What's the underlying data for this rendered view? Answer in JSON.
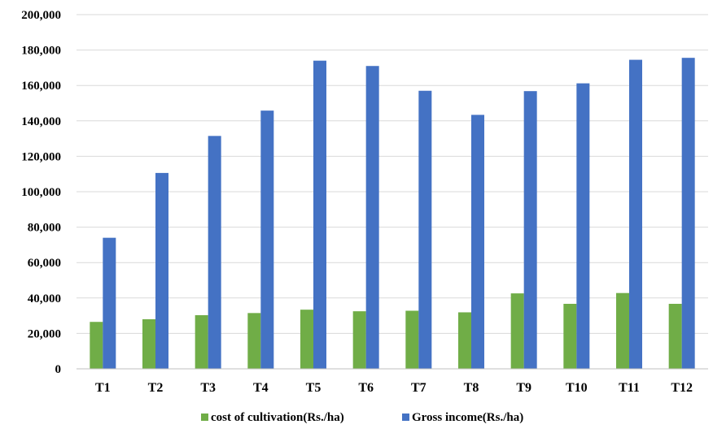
{
  "chart_data": {
    "type": "bar",
    "categories": [
      "T1",
      "T2",
      "T3",
      "T4",
      "T5",
      "T6",
      "T7",
      "T8",
      "T9",
      "T10",
      "T11",
      "T12"
    ],
    "series": [
      {
        "name": "cost of cultivation(Rs./ha)",
        "color": "#70AD47",
        "values": [
          26500,
          28000,
          30300,
          31500,
          33400,
          32500,
          32800,
          31900,
          42600,
          36700,
          42800,
          36700
        ]
      },
      {
        "name": "Gross income(Rs./ha)",
        "color": "#4472C4",
        "values": [
          74000,
          110600,
          131500,
          145800,
          174000,
          171000,
          157000,
          143400,
          156800,
          161200,
          174500,
          175600
        ]
      }
    ],
    "yticks": [
      "0",
      "20,000",
      "40,000",
      "60,000",
      "80,000",
      "100,000",
      "120,000",
      "140,000",
      "160,000",
      "180,000",
      "200,000"
    ],
    "ylim": [
      0,
      200000
    ],
    "grid": true,
    "legend_position": "bottom",
    "title": "",
    "xlabel": "",
    "ylabel": ""
  }
}
